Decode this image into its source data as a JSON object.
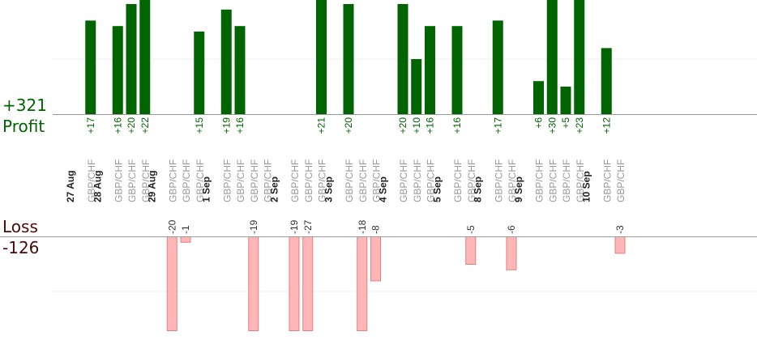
{
  "summary": {
    "profit_total": "+321",
    "profit_label": "Profit",
    "loss_label": "Loss",
    "loss_total": "-126"
  },
  "colors": {
    "profit_bar": "#006400",
    "loss_fill": "#ffb6b6",
    "loss_stroke": "#e08080",
    "axis": "#999999",
    "grid": "#eeeeee",
    "date_text": "#222222",
    "pair_text": "#999999",
    "profit_text": "#006400",
    "loss_text": "#333333"
  },
  "chart_data": {
    "type": "bar",
    "title": "",
    "xlabel": "",
    "ylabel": "",
    "ylim": [
      -25,
      25
    ],
    "grid": true,
    "categories": [
      {
        "date": "27 Aug",
        "trades": [
          {
            "pair": "GBP/CHF",
            "profit": 17,
            "profit_label": "+17",
            "loss": null,
            "loss_label": ""
          }
        ]
      },
      {
        "date": "28 Aug",
        "trades": [
          {
            "pair": "GBP/CHF",
            "profit": 16,
            "profit_label": "+16",
            "loss": null,
            "loss_label": ""
          },
          {
            "pair": "GBP/CHF",
            "profit": 20,
            "profit_label": "+20",
            "loss": null,
            "loss_label": ""
          },
          {
            "pair": "GBP/CHF",
            "profit": 22,
            "profit_label": "+22",
            "loss": null,
            "loss_label": ""
          }
        ]
      },
      {
        "date": "29 Aug",
        "trades": [
          {
            "pair": "GBP/CHF",
            "profit": null,
            "profit_label": "",
            "loss": -20,
            "loss_label": "-20"
          },
          {
            "pair": "GBP/CHF",
            "profit": null,
            "profit_label": "",
            "loss": -1,
            "loss_label": "-1"
          },
          {
            "pair": "GBP/CHF",
            "profit": 15,
            "profit_label": "+15",
            "loss": null,
            "loss_label": ""
          }
        ]
      },
      {
        "date": "1 Sep",
        "trades": [
          {
            "pair": "GBP/CHF",
            "profit": 19,
            "profit_label": "+19",
            "loss": null,
            "loss_label": ""
          },
          {
            "pair": "GBP/CHF",
            "profit": 16,
            "profit_label": "+16",
            "loss": null,
            "loss_label": ""
          },
          {
            "pair": "GBP/CHF",
            "profit": null,
            "profit_label": "",
            "loss": -19,
            "loss_label": "-19"
          },
          {
            "pair": "GBP/CHF",
            "profit": null,
            "profit_label": "",
            "loss": null,
            "loss_label": ""
          }
        ]
      },
      {
        "date": "2 Sep",
        "trades": [
          {
            "pair": "GBP/CHF",
            "profit": null,
            "profit_label": "",
            "loss": -19,
            "loss_label": "-19"
          },
          {
            "pair": "GBP/CHF",
            "profit": null,
            "profit_label": "",
            "loss": -27,
            "loss_label": "-27"
          },
          {
            "pair": "GBP/CHF",
            "profit": 21,
            "profit_label": "+21",
            "loss": null,
            "loss_label": ""
          }
        ]
      },
      {
        "date": "3 Sep",
        "trades": [
          {
            "pair": "GBP/CHF",
            "profit": 20,
            "profit_label": "+20",
            "loss": null,
            "loss_label": ""
          },
          {
            "pair": "GBP/CHF",
            "profit": null,
            "profit_label": "",
            "loss": -18,
            "loss_label": "-18"
          },
          {
            "pair": "GBP/CHF",
            "profit": null,
            "profit_label": "",
            "loss": -8,
            "loss_label": "-8"
          }
        ]
      },
      {
        "date": "4 Sep",
        "trades": [
          {
            "pair": "GBP/CHF",
            "profit": 20,
            "profit_label": "+20",
            "loss": null,
            "loss_label": ""
          },
          {
            "pair": "GBP/CHF",
            "profit": 10,
            "profit_label": "+10",
            "loss": null,
            "loss_label": ""
          },
          {
            "pair": "GBP/CHF",
            "profit": 16,
            "profit_label": "+16",
            "loss": null,
            "loss_label": ""
          }
        ]
      },
      {
        "date": "5 Sep",
        "trades": [
          {
            "pair": "GBP/CHF",
            "profit": 16,
            "profit_label": "+16",
            "loss": null,
            "loss_label": ""
          },
          {
            "pair": "GBP/CHF",
            "profit": null,
            "profit_label": "",
            "loss": -5,
            "loss_label": "-5"
          }
        ]
      },
      {
        "date": "8 Sep",
        "trades": [
          {
            "pair": "GBP/CHF",
            "profit": 17,
            "profit_label": "+17",
            "loss": null,
            "loss_label": ""
          },
          {
            "pair": "GBP/CHF",
            "profit": null,
            "profit_label": "",
            "loss": -6,
            "loss_label": "-6"
          }
        ]
      },
      {
        "date": "9 Sep",
        "trades": [
          {
            "pair": "GBP/CHF",
            "profit": 6,
            "profit_label": "+6",
            "loss": null,
            "loss_label": ""
          },
          {
            "pair": "GBP/CHF",
            "profit": 30,
            "profit_label": "+30",
            "loss": null,
            "loss_label": ""
          },
          {
            "pair": "GBP/CHF",
            "profit": 5,
            "profit_label": "+5",
            "loss": null,
            "loss_label": ""
          },
          {
            "pair": "GBP/CHF",
            "profit": 23,
            "profit_label": "+23",
            "loss": null,
            "loss_label": ""
          }
        ]
      },
      {
        "date": "10 Sep",
        "trades": [
          {
            "pair": "GBP/CHF",
            "profit": 12,
            "profit_label": "+12",
            "loss": null,
            "loss_label": ""
          },
          {
            "pair": "GBP/CHF",
            "profit": null,
            "profit_label": "",
            "loss": -3,
            "loss_label": "-3"
          }
        ]
      }
    ]
  }
}
